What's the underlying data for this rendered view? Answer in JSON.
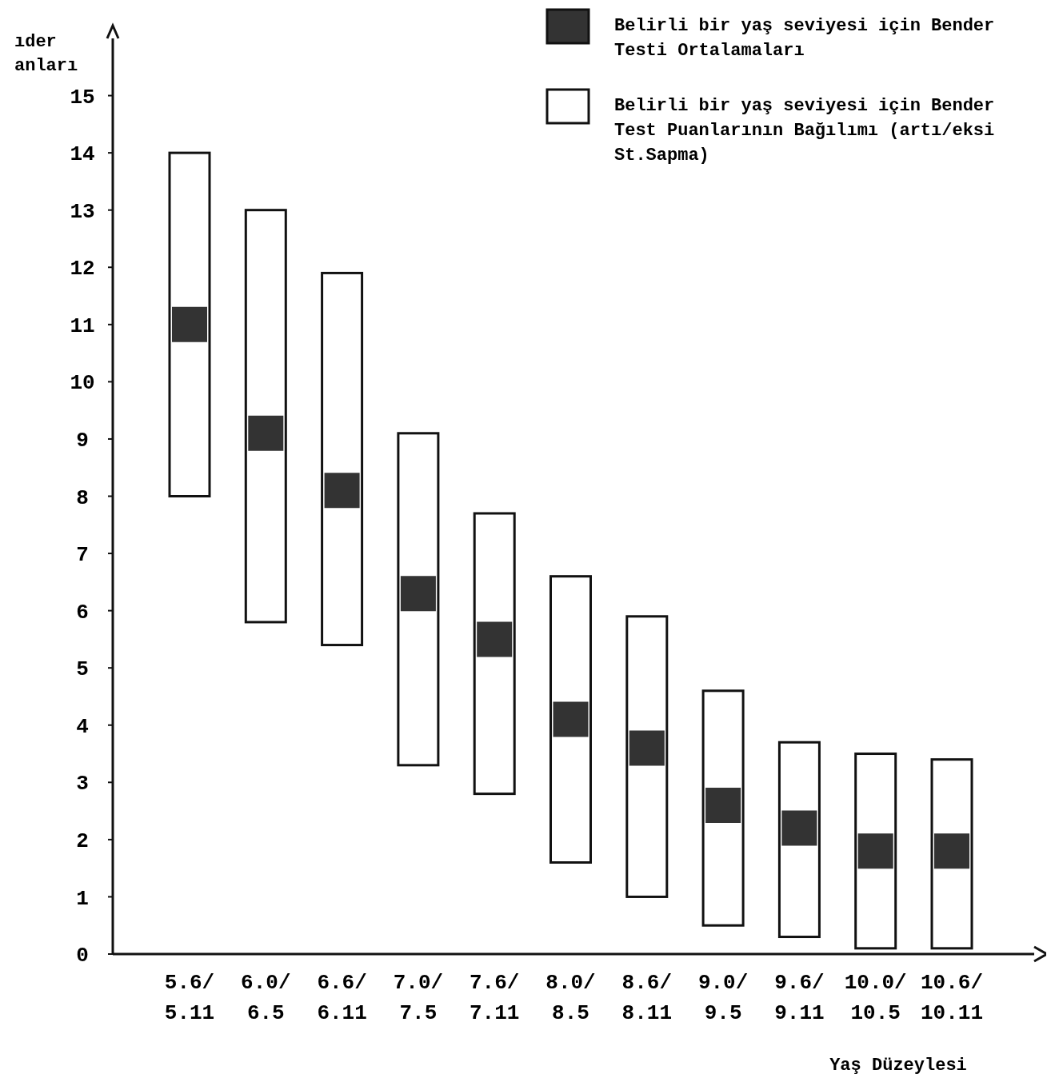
{
  "chart_data": {
    "type": "bar",
    "ylabel": "ıder anları",
    "xlabel": "Yaş Düzeylesi",
    "categories": [
      "5.6/ 5.11",
      "6.0/ 6.5",
      "6.6/ 6.11",
      "7.0/ 7.5",
      "7.6/ 7.11",
      "8.0/ 8.5",
      "8.6/ 8.11",
      "9.0/ 9.5",
      "9.6/ 9.11",
      "10.0/ 10.5",
      "10.6/ 10.11"
    ],
    "series": [
      {
        "base": [
          8,
          5.8,
          5.4,
          3.3,
          2.8,
          1.6,
          1.0,
          0.5,
          0.3,
          0.1,
          0.1
        ],
        "name": "Belirli bir yaş seviyesi için Bender Test Puanlarının Bağılımı (artı/eksi St.Sapma)",
        "color": "#ffffff",
        "values": [
          6,
          7.2,
          6.5,
          5.8,
          4.9,
          5.0,
          4.9,
          4.1,
          3.4,
          3.4,
          3.3
        ]
      },
      {
        "type": "scatter",
        "name": "Belirli bir yaş seviyesi için Bender Testi Ortalamaları",
        "color": "#333333",
        "values": [
          11,
          9.1,
          8.1,
          6.3,
          5.5,
          4.1,
          3.6,
          2.6,
          2.2,
          1.8,
          1.8
        ]
      }
    ],
    "marker": "square",
    "ylim": [
      0,
      16
    ],
    "yticks": [
      0,
      1,
      2,
      3,
      4,
      5,
      6,
      7,
      8,
      9,
      10,
      11,
      12,
      13,
      14,
      15
    ],
    "legend": "top right"
  }
}
